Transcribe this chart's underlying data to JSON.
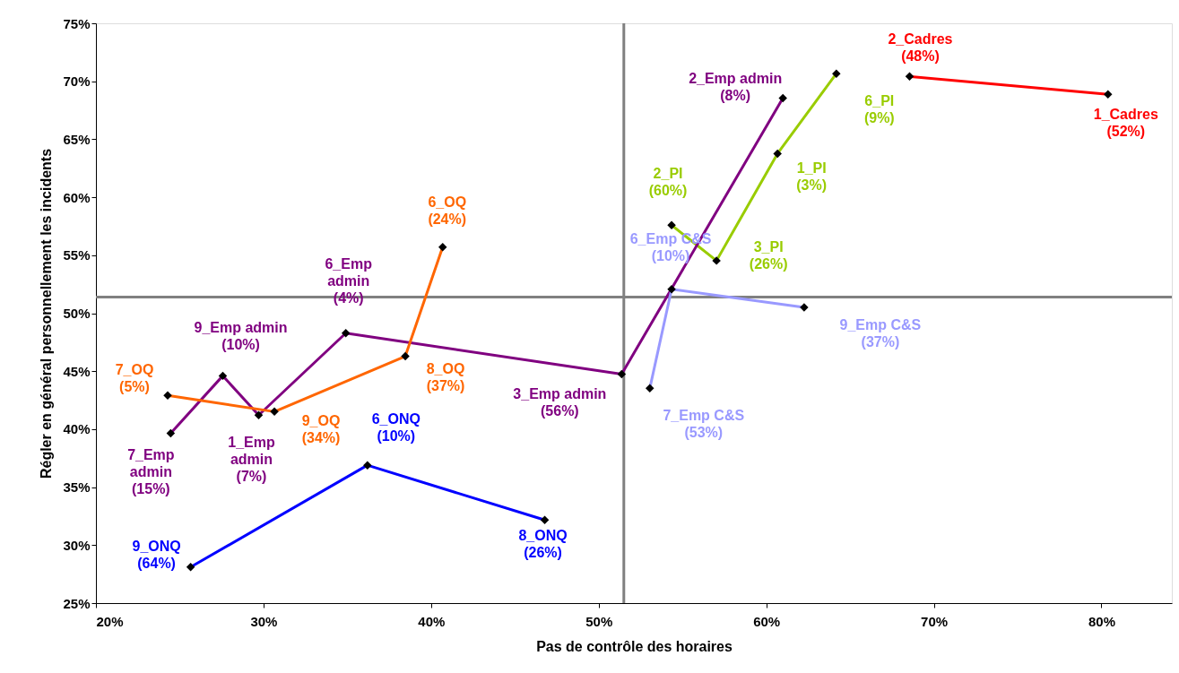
{
  "chart_data": {
    "type": "line",
    "xlabel": "Pas de contrôle des horaires",
    "ylabel": "Régler en général personnellement les incidents",
    "xlim": [
      20,
      84.2
    ],
    "ylim": [
      25,
      75
    ],
    "xticks": [
      {
        "value": 20,
        "label": "20%"
      },
      {
        "value": 30,
        "label": "30%"
      },
      {
        "value": 40,
        "label": "40%"
      },
      {
        "value": 50,
        "label": "50%"
      },
      {
        "value": 60,
        "label": "60%"
      },
      {
        "value": 70,
        "label": "70%"
      },
      {
        "value": 80,
        "label": "80%"
      }
    ],
    "yticks": [
      {
        "value": 25,
        "label": "25%"
      },
      {
        "value": 30,
        "label": "30%"
      },
      {
        "value": 35,
        "label": "35%"
      },
      {
        "value": 40,
        "label": "40%"
      },
      {
        "value": 45,
        "label": "45%"
      },
      {
        "value": 50,
        "label": "50%"
      },
      {
        "value": 55,
        "label": "55%"
      },
      {
        "value": 60,
        "label": "60%"
      },
      {
        "value": 65,
        "label": "65%"
      },
      {
        "value": 70,
        "label": "70%"
      },
      {
        "value": 75,
        "label": "75%"
      }
    ],
    "grid": false,
    "legend": false,
    "marker": "diamond",
    "line_style": "solid",
    "ref_lines": [
      {
        "axis": "x",
        "value": 51.5,
        "color": "#808080"
      },
      {
        "axis": "y",
        "value": 51.4,
        "color": "#808080"
      }
    ],
    "series": [
      {
        "color": "#ff0000",
        "x": [
          68.55,
          80.39
        ],
        "values": [
          70.42,
          68.87
        ]
      },
      {
        "color": "#99cc00",
        "x": [
          54.35,
          57.03,
          60.67,
          64.18
        ],
        "values": [
          57.59,
          54.53,
          63.76,
          70.66
        ]
      },
      {
        "color": "#800080",
        "x": [
          24.46,
          27.57,
          29.71,
          34.91,
          51.37,
          60.99
        ],
        "values": [
          39.65,
          44.6,
          41.21,
          48.28,
          44.75,
          68.55
        ]
      },
      {
        "color": "#ff6600",
        "x": [
          24.28,
          30.65,
          38.46,
          40.69
        ],
        "values": [
          42.91,
          41.51,
          46.29,
          55.7
        ]
      },
      {
        "color": "#0000ff",
        "x": [
          25.65,
          36.2,
          46.78
        ],
        "values": [
          28.11,
          36.89,
          32.17
        ]
      },
      {
        "color": "#9999ff",
        "x": [
          53.05,
          54.35,
          62.26
        ],
        "values": [
          43.52,
          52.07,
          50.51
        ]
      }
    ],
    "annotations": [
      {
        "text": "2_Cadres\n(48%)",
        "x": 68.55,
        "y": 70.42
      },
      {
        "text": "1_Cadres\n(52%)",
        "x": 80.39,
        "y": 68.87
      },
      {
        "text": "2_PI\n(60%)",
        "x": 54.35,
        "y": 57.59
      },
      {
        "text": "3_PI\n(26%)",
        "x": 57.03,
        "y": 54.53
      },
      {
        "text": "1_PI\n(3%)",
        "x": 60.67,
        "y": 63.76
      },
      {
        "text": "6_PI\n(9%)",
        "x": 64.18,
        "y": 70.66
      },
      {
        "text": "7_Emp\nadmin\n(15%)",
        "x": 24.46,
        "y": 39.65
      },
      {
        "text": "9_Emp admin\n(10%)",
        "x": 27.57,
        "y": 44.6
      },
      {
        "text": "1_Emp\nadmin\n(7%)",
        "x": 29.71,
        "y": 41.21
      },
      {
        "text": "6_Emp\nadmin\n(4%)",
        "x": 34.91,
        "y": 48.28
      },
      {
        "text": "3_Emp admin\n(56%)",
        "x": 51.37,
        "y": 44.75
      },
      {
        "text": "2_Emp admin\n(8%)",
        "x": 60.99,
        "y": 68.55
      },
      {
        "text": "7_OQ\n(5%)",
        "x": 24.28,
        "y": 42.91
      },
      {
        "text": "9_OQ\n(34%)",
        "x": 30.65,
        "y": 41.51
      },
      {
        "text": "8_OQ\n(37%)",
        "x": 38.46,
        "y": 46.29
      },
      {
        "text": "6_OQ\n(24%)",
        "x": 40.69,
        "y": 55.7
      },
      {
        "text": "9_ONQ\n(64%)",
        "x": 25.65,
        "y": 28.11
      },
      {
        "text": "6_ONQ\n(10%)",
        "x": 36.2,
        "y": 36.89
      },
      {
        "text": "8_ONQ\n(26%)",
        "x": 46.78,
        "y": 32.17
      },
      {
        "text": "7_Emp C&S\n(53%)",
        "x": 53.05,
        "y": 43.52
      },
      {
        "text": "6_Emp C&S\n(10%)",
        "x": 54.35,
        "y": 52.07
      },
      {
        "text": "9_Emp C&S\n(37%)",
        "x": 62.26,
        "y": 50.51
      }
    ]
  }
}
